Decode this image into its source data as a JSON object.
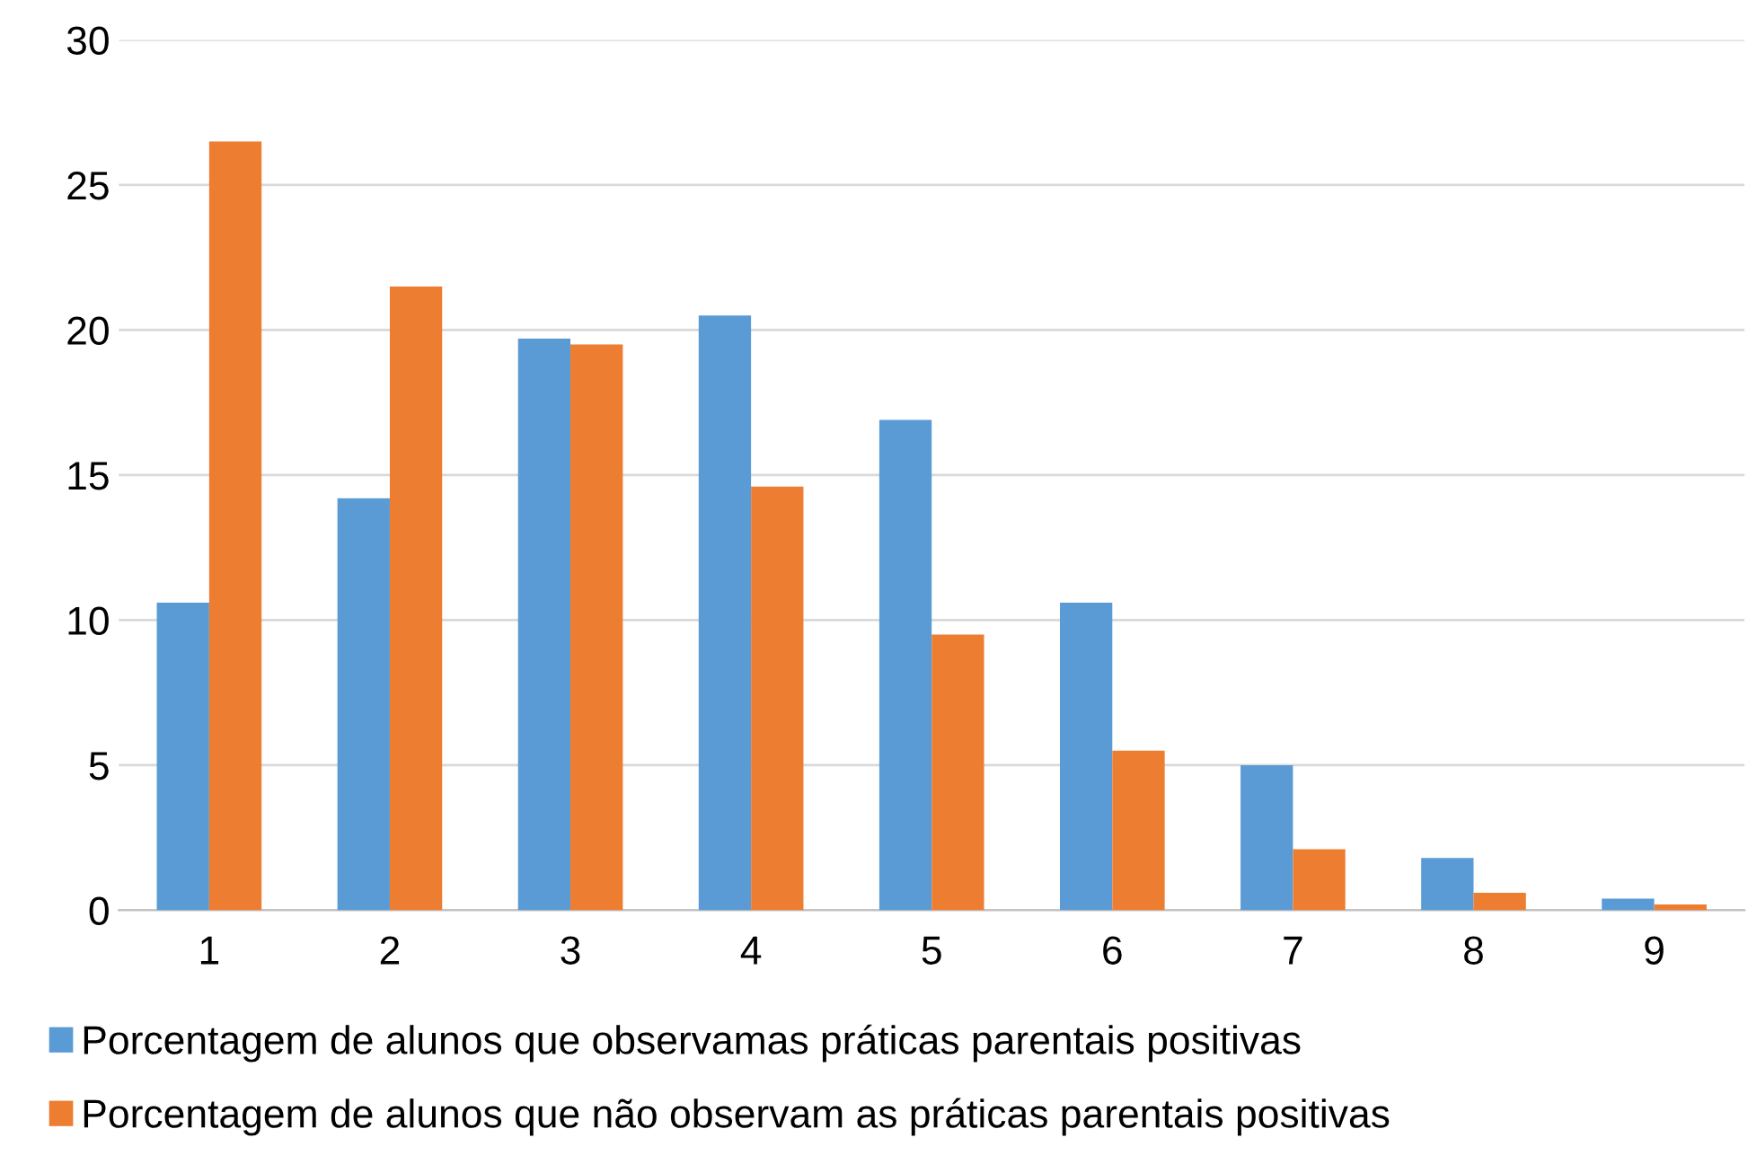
{
  "chart_data": {
    "type": "bar",
    "categories": [
      "1",
      "2",
      "3",
      "4",
      "5",
      "6",
      "7",
      "8",
      "9"
    ],
    "series": [
      {
        "name": "Porcentagem de alunos que observamas práticas parentais positivas",
        "color": "#5b9bd5",
        "values": [
          10.6,
          14.2,
          19.7,
          20.5,
          16.9,
          10.6,
          5.0,
          1.8,
          0.4
        ]
      },
      {
        "name": "Porcentagem de alunos que não observam as práticas parentais positivas",
        "color": "#ed7d31",
        "values": [
          26.5,
          21.5,
          19.5,
          14.6,
          9.5,
          5.5,
          2.1,
          0.6,
          0.2
        ]
      }
    ],
    "ylim": [
      0,
      30
    ],
    "yticks": [
      0,
      5,
      10,
      15,
      20,
      25,
      30
    ],
    "grid": "y",
    "legend": "bottom"
  }
}
